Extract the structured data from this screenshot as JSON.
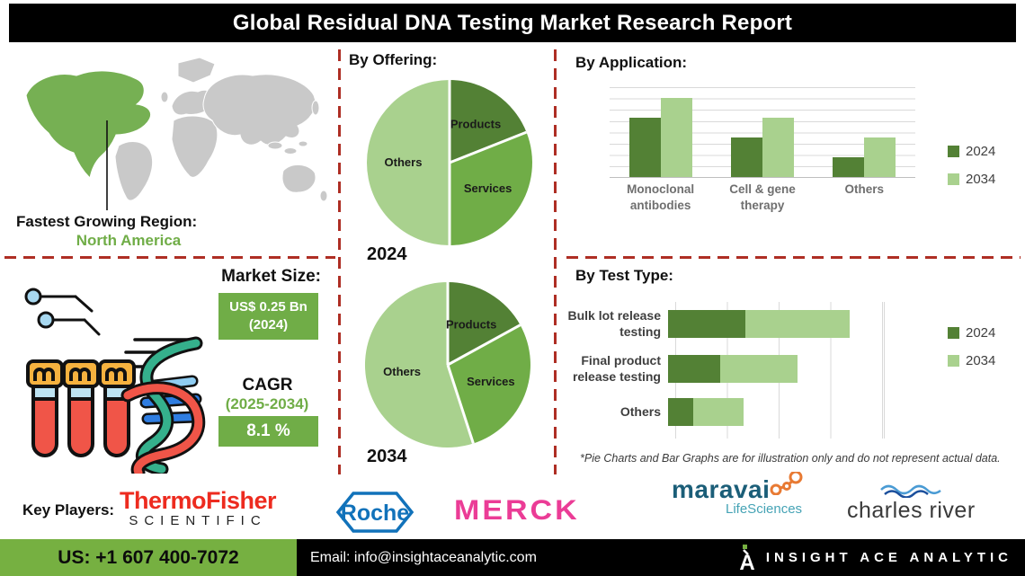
{
  "title": "Global Residual DNA Testing Market Research Report",
  "colors": {
    "dark_green": "#538135",
    "mid_green": "#70ad47",
    "light_green": "#a9d18e",
    "map_green": "#76b053",
    "map_gray": "#c9c9c9",
    "dash_red": "#ae2e24",
    "footer_green": "#76b041",
    "box_green": "#70ad47"
  },
  "region": {
    "label": "Fastest Growing Region:",
    "value": "North America"
  },
  "market_size": {
    "heading": "Market Size:",
    "value": "US$ 0.25 Bn",
    "value_year": "(2024)",
    "cagr_label": "CAGR",
    "cagr_period": "(2025-2034)",
    "cagr_value": "8.1 %"
  },
  "chart_data": [
    {
      "type": "pie",
      "section": "By Offering:",
      "year": "2024",
      "slices": [
        {
          "label": "Products",
          "value": 19
        },
        {
          "label": "Services",
          "value": 31
        },
        {
          "label": "Others",
          "value": 50
        }
      ],
      "slice_colors": [
        "#538135",
        "#70ad47",
        "#a9d18e"
      ]
    },
    {
      "type": "pie",
      "section": "By Offering:",
      "year": "2034",
      "slices": [
        {
          "label": "Products",
          "value": 17
        },
        {
          "label": "Services",
          "value": 28
        },
        {
          "label": "Others",
          "value": 55
        }
      ],
      "slice_colors": [
        "#538135",
        "#70ad47",
        "#a9d18e"
      ]
    },
    {
      "type": "bar",
      "section": "By  Application:",
      "categories": [
        "Monoclonal antibodies",
        "Cell & gene therapy",
        "Others"
      ],
      "series": [
        {
          "name": "2024",
          "values": [
            66,
            44,
            22
          ],
          "color": "#538135"
        },
        {
          "name": "2034",
          "values": [
            88,
            66,
            44
          ],
          "color": "#a9d18e"
        }
      ],
      "ylim": [
        0,
        100
      ],
      "grid": true,
      "legend_position": "right",
      "note": "illustrative values (no axis labels shown)"
    },
    {
      "type": "stacked-bar-horizontal",
      "section": "By Test Type:",
      "categories": [
        "Bulk lot release testing",
        "Final product release testing",
        "Others"
      ],
      "series": [
        {
          "name": "2024",
          "values": [
            37,
            25,
            12
          ],
          "color": "#538135"
        },
        {
          "name": "2034",
          "values": [
            50,
            37,
            24
          ],
          "color": "#a9d18e"
        }
      ],
      "xlim": [
        0,
        100
      ],
      "grid": true,
      "legend_position": "right",
      "note": "*Pie Charts and Bar Graphs are for illustration only and do not represent actual data."
    }
  ],
  "key_players": {
    "label": "Key Players:",
    "players": [
      "Thermo Fisher Scientific",
      "Roche",
      "Merck",
      "Maravai LifeSciences",
      "Charles River"
    ],
    "logos": {
      "thermo_line1": "ThermoFisher",
      "thermo_line2": "SCIENTIFIC",
      "roche": "Roche",
      "merck": "MERCK",
      "maravai": "maravai",
      "maravai_sub": "LifeSciences",
      "charles": "charles river"
    }
  },
  "footer": {
    "phone": "US: +1 607 400-7072",
    "email": "Email: info@insightaceanalytic.com",
    "brand": "INSIGHT ACE ANALYTIC"
  }
}
